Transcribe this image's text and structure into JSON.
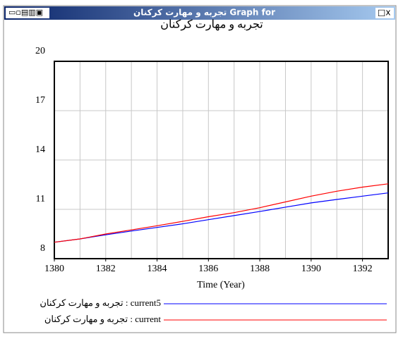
{
  "window_title": "تجربه و مهارت کرکنان Graph for",
  "chart_data": {
    "type": "line",
    "title": "تجربه و مهارت کرکنان",
    "x_label": "Time (Year)",
    "x": [
      1380,
      1381,
      1382,
      1383,
      1384,
      1385,
      1386,
      1387,
      1388,
      1389,
      1390,
      1391,
      1392,
      1393
    ],
    "series": [
      {
        "name": "تجربه و مهارت کرکنان : current5",
        "color": "#0000ff",
        "values": [
          9.0,
          9.2,
          9.45,
          9.68,
          9.9,
          10.12,
          10.37,
          10.62,
          10.87,
          11.13,
          11.39,
          11.6,
          11.8,
          12.0
        ]
      },
      {
        "name": "تجربه و مهارت کرکنان : current",
        "color": "#ff0000",
        "values": [
          9.0,
          9.2,
          9.5,
          9.75,
          10.0,
          10.27,
          10.55,
          10.8,
          11.1,
          11.45,
          11.8,
          12.1,
          12.35,
          12.55
        ]
      }
    ],
    "xlim": [
      1380,
      1393
    ],
    "xticks": [
      1380,
      1382,
      1384,
      1386,
      1388,
      1390,
      1392
    ],
    "xgrid": [
      1380,
      1381,
      1382,
      1383,
      1384,
      1385,
      1386,
      1387,
      1388,
      1389,
      1390,
      1391,
      1392,
      1393
    ],
    "ylim": [
      8,
      20
    ],
    "yticks": [
      8,
      11,
      14,
      17,
      20
    ],
    "grid": true
  }
}
